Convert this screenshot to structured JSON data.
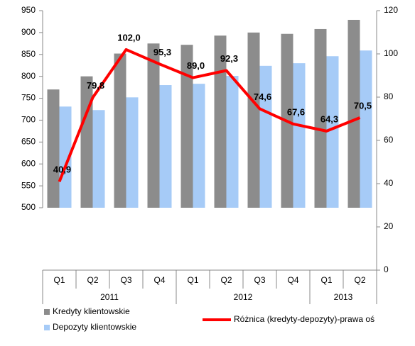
{
  "chart_data": {
    "type": "bar_line",
    "groups": [
      {
        "label": "2011",
        "categories": [
          "Q1",
          "Q2",
          "Q3",
          "Q4"
        ]
      },
      {
        "label": "2012",
        "categories": [
          "Q1",
          "Q2",
          "Q3",
          "Q4"
        ]
      },
      {
        "label": "2013",
        "categories": [
          "Q1",
          "Q2"
        ]
      }
    ],
    "series": [
      {
        "name": "Kredyty klientowskie",
        "type": "bar",
        "axis": "y",
        "color": "#8c8c8c",
        "values": [
          770,
          800,
          852,
          875,
          872,
          893,
          900,
          897,
          908,
          929
        ]
      },
      {
        "name": "Depozyty klientowskie",
        "type": "bar",
        "axis": "y",
        "color": "#a6cbf7",
        "values": [
          731,
          723,
          752,
          780,
          783,
          801,
          824,
          830,
          846,
          859
        ]
      },
      {
        "name": "Różnica (kredyty-depozyty)-prawa oś",
        "type": "line",
        "axis": "y2",
        "color": "#ff0000",
        "values": [
          40.9,
          79.8,
          102.0,
          95.3,
          89.0,
          92.3,
          74.6,
          67.6,
          64.3,
          70.5
        ],
        "value_labels": [
          "40,9",
          "79,8",
          "102,0",
          "95,3",
          "89,0",
          "92,3",
          "74,6",
          "67,6",
          "64,3",
          "70,5"
        ]
      }
    ],
    "ylim": [
      500,
      950
    ],
    "yticks": [
      500,
      550,
      600,
      650,
      700,
      750,
      800,
      850,
      900,
      950
    ],
    "y2lim": [
      0,
      120
    ],
    "y2ticks": [
      0,
      20,
      40,
      60,
      80,
      100,
      120
    ]
  }
}
